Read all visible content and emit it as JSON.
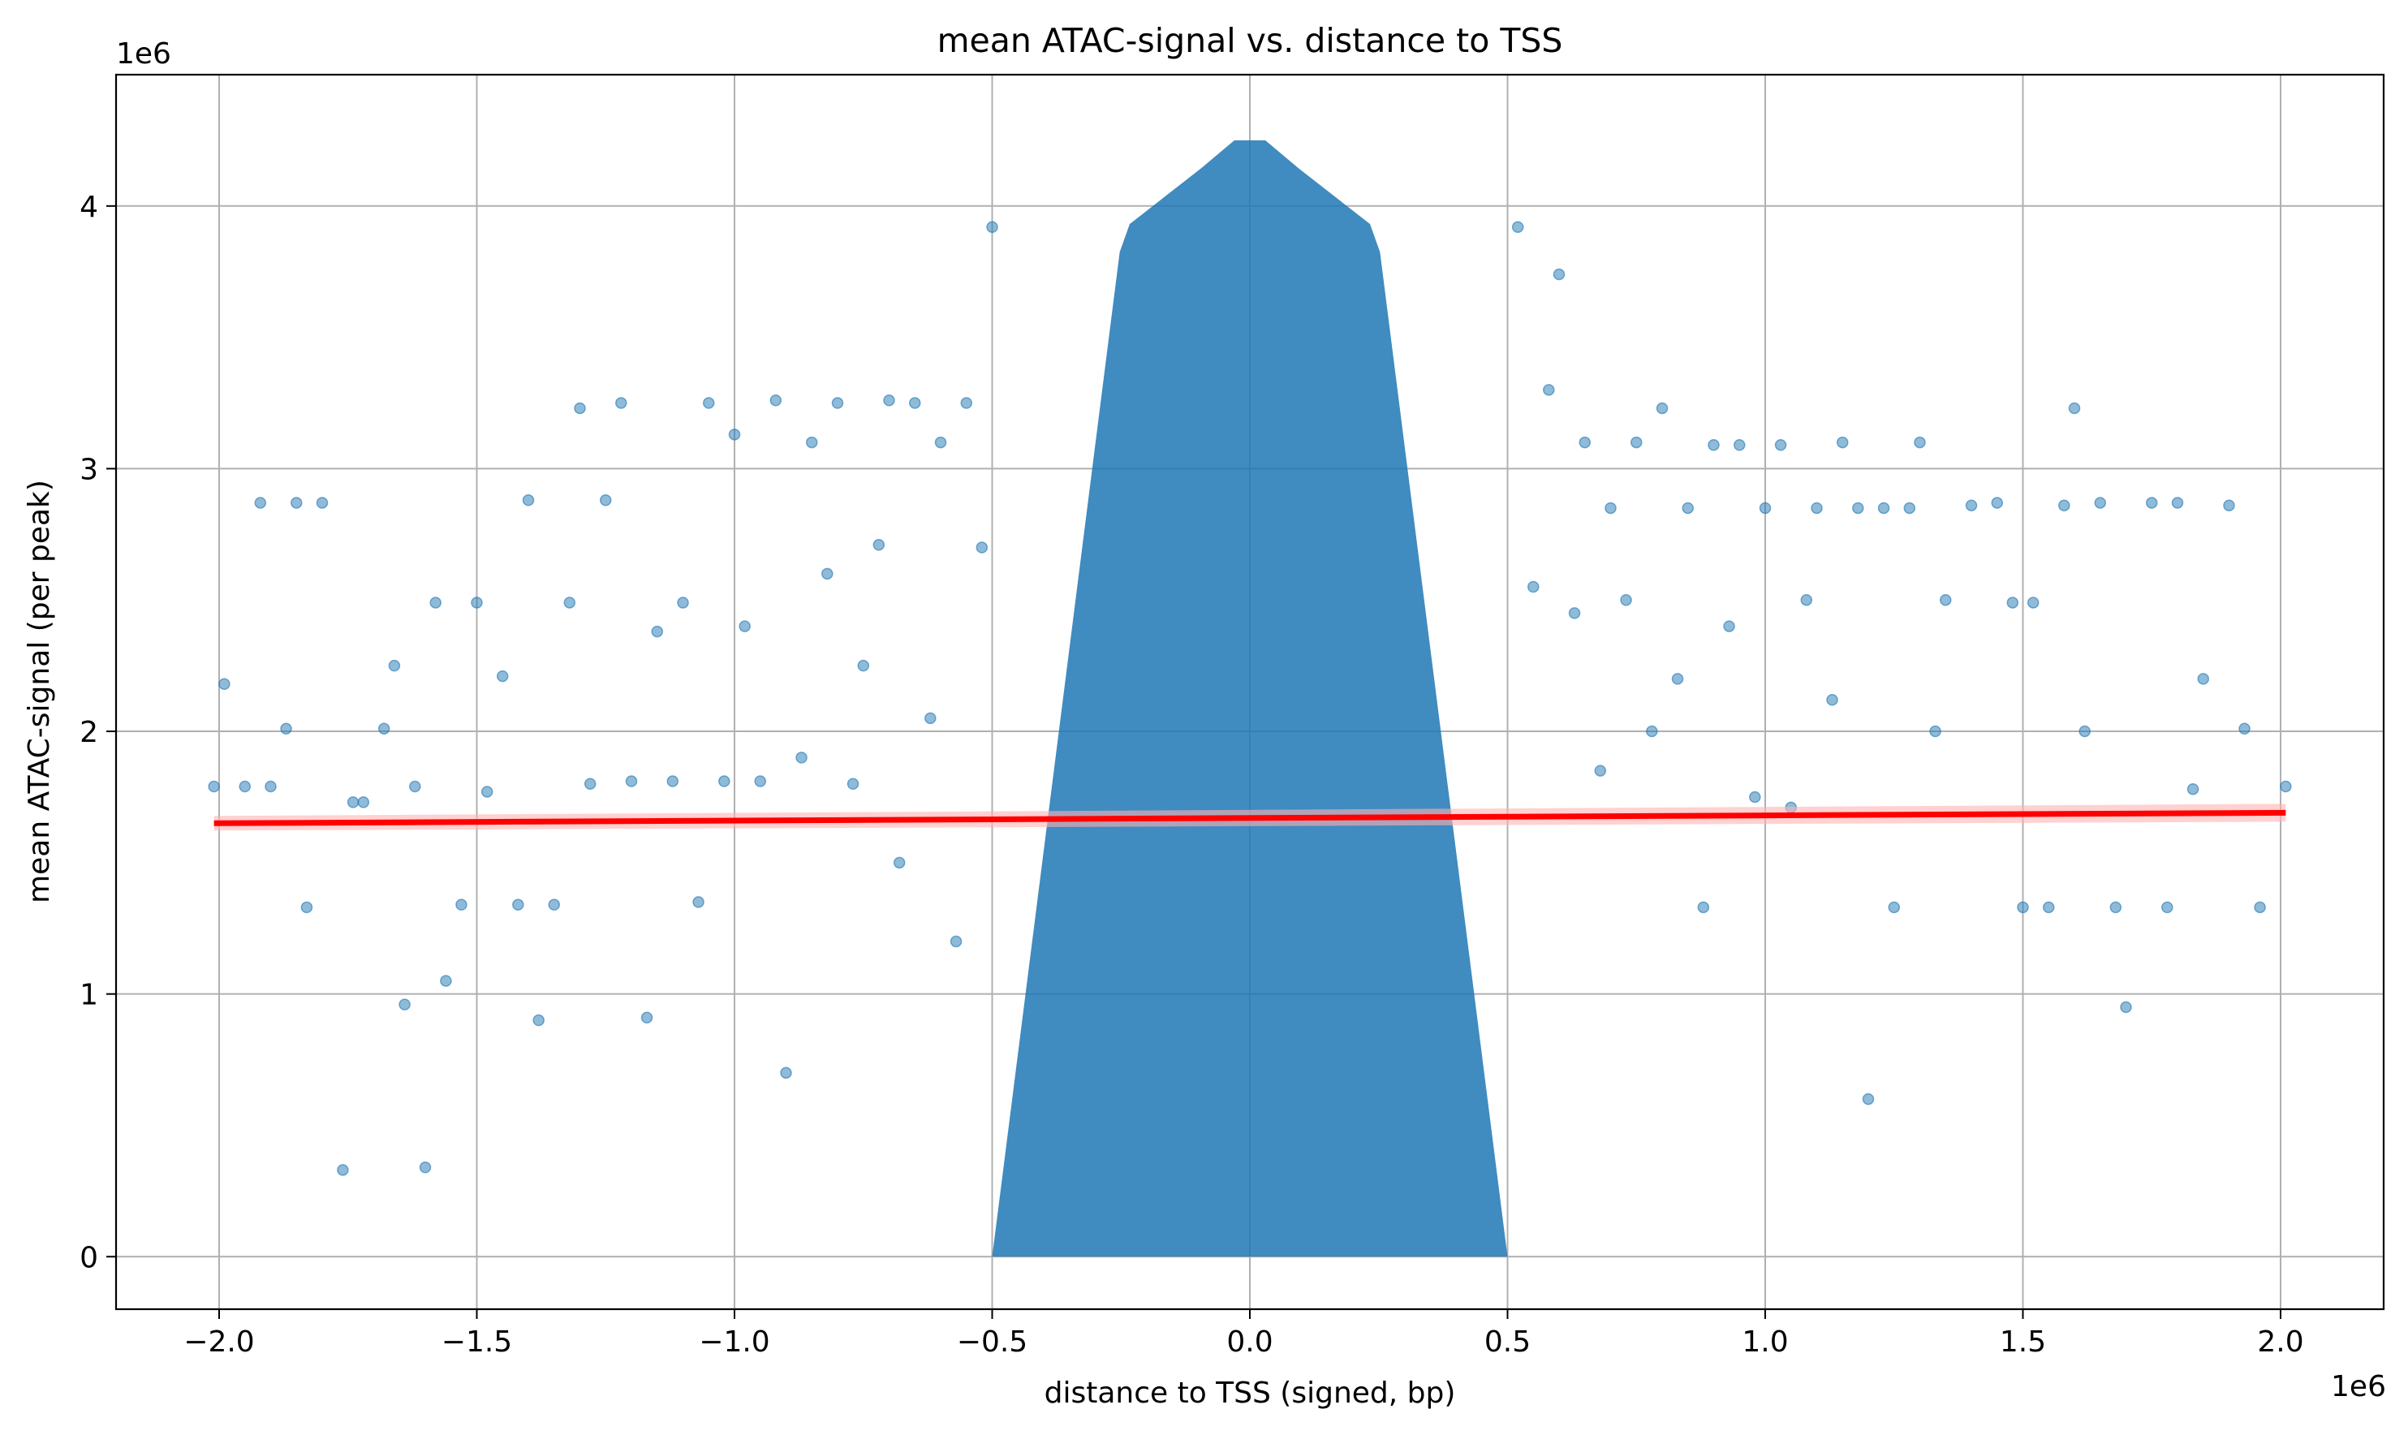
{
  "chart_data": {
    "type": "scatter",
    "title": "mean ATAC-signal vs. distance to TSS",
    "xlabel": "distance to TSS (signed, bp)",
    "ylabel": "mean ATAC-signal (per peak)",
    "x_offset_label": "1e6",
    "y_offset_label": "1e6",
    "xlim": [
      -2200000,
      2200000
    ],
    "ylim": [
      -200000,
      4500000
    ],
    "x_ticks": [
      -2000000,
      -1500000,
      -1000000,
      -500000,
      0,
      500000,
      1000000,
      1500000,
      2000000
    ],
    "x_tick_labels": [
      "−2.0",
      "−1.5",
      "−1.0",
      "−0.5",
      "0.0",
      "0.5",
      "1.0",
      "1.5",
      "2.0"
    ],
    "y_ticks": [
      0,
      1000000,
      2000000,
      3000000,
      4000000
    ],
    "y_tick_labels": [
      "0",
      "1",
      "2",
      "3",
      "4"
    ],
    "grid": true,
    "legend": "none",
    "colors": {
      "points": "#1f77b4",
      "regression": "#ff0000",
      "band": "#ffb3b3",
      "grid": "#b0b0b0"
    },
    "series": [
      {
        "kind": "points",
        "x": [
          -2010000,
          -1990000,
          -1950000,
          -1920000,
          -1900000,
          -1870000,
          -1850000,
          -1830000,
          -1800000,
          -1760000,
          -1740000,
          -1720000,
          -1680000,
          -1660000,
          -1640000,
          -1620000,
          -1600000,
          -1580000,
          -1560000,
          -1530000,
          -1500000,
          -1480000,
          -1450000,
          -1420000,
          -1400000,
          -1380000,
          -1350000,
          -1320000,
          -1300000,
          -1280000,
          -1250000,
          -1220000,
          -1200000,
          -1170000,
          -1150000,
          -1120000,
          -1100000,
          -1070000,
          -1050000,
          -1020000,
          -1000000,
          -980000,
          -950000,
          -920000,
          -900000,
          -870000,
          -850000,
          -820000,
          -800000,
          -770000,
          -750000,
          -720000,
          -700000,
          -680000,
          -650000,
          -620000,
          -600000,
          -570000,
          -550000,
          -520000,
          -500000,
          520000,
          550000,
          580000,
          600000,
          630000,
          650000,
          680000,
          700000,
          730000,
          750000,
          780000,
          800000,
          830000,
          850000,
          880000,
          900000,
          930000,
          950000,
          980000,
          1000000,
          1030000,
          1050000,
          1080000,
          1100000,
          1130000,
          1150000,
          1180000,
          1200000,
          1230000,
          1250000,
          1280000,
          1300000,
          1330000,
          1350000,
          1400000,
          1450000,
          1480000,
          1500000,
          1520000,
          1550000,
          1580000,
          1600000,
          1620000,
          1650000,
          1680000,
          1700000,
          1750000,
          1780000,
          1800000,
          1830000,
          1850000,
          1900000,
          1930000,
          1960000,
          2010000
        ],
        "y": [
          1790000,
          2180000,
          1790000,
          2870000,
          1790000,
          2010000,
          2870000,
          1330000,
          2870000,
          330000,
          1730000,
          1730000,
          2010000,
          2250000,
          960000,
          1790000,
          340000,
          2490000,
          1050000,
          1340000,
          2490000,
          1770000,
          2210000,
          1340000,
          2880000,
          900000,
          1340000,
          2490000,
          3230000,
          1800000,
          2880000,
          3250000,
          1810000,
          910000,
          2380000,
          1810000,
          2490000,
          1350000,
          3250000,
          1810000,
          3130000,
          2400000,
          1810000,
          3260000,
          700000,
          1900000,
          3100000,
          2600000,
          3250000,
          1800000,
          2250000,
          2710000,
          3260000,
          1500000,
          3250000,
          2050000,
          3100000,
          1200000,
          3250000,
          2700000,
          3920000,
          3920000,
          2550000,
          3300000,
          3740000,
          2450000,
          3100000,
          1850000,
          2850000,
          2500000,
          3100000,
          2000000,
          3230000,
          2200000,
          2850000,
          1330000,
          3090000,
          2400000,
          3090000,
          1750000,
          2850000,
          3090000,
          1710000,
          2500000,
          2850000,
          2120000,
          3100000,
          2850000,
          600000,
          2850000,
          1330000,
          2850000,
          3100000,
          2000000,
          2500000,
          2860000,
          2870000,
          2490000,
          1330000,
          2490000,
          1330000,
          2860000,
          3230000,
          2000000,
          2870000,
          1330000,
          950000,
          2870000,
          1330000,
          2870000,
          1780000,
          2200000,
          2860000,
          2010000,
          1330000,
          1790000
        ],
        "note_density": "very dense vertical cloud centered at x=0 spanning y=0 to 4.25e6, width about ±0.5e6"
      },
      {
        "kind": "regression_line",
        "x": [
          -2010000,
          2010000
        ],
        "y": [
          1650000,
          1690000
        ]
      }
    ]
  }
}
